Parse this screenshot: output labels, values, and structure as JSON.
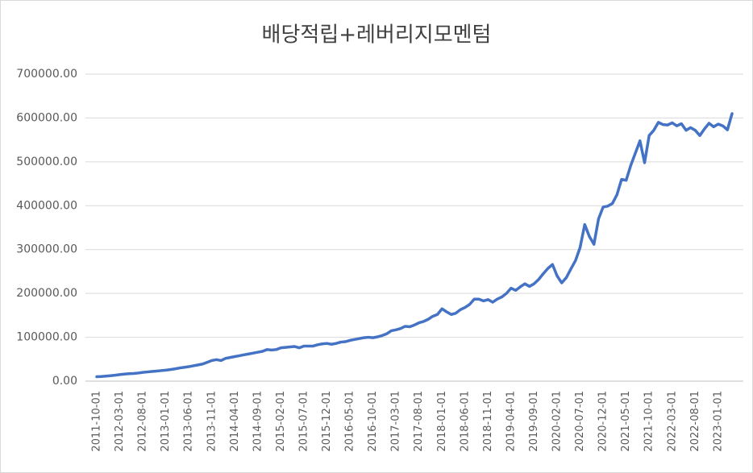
{
  "chart_data": {
    "type": "line",
    "title": "배당적립+레버리지모멘텀",
    "categories": [
      "2011-10-01",
      null,
      null,
      null,
      null,
      "2012-03-01",
      null,
      null,
      null,
      null,
      "2012-08-01",
      null,
      null,
      null,
      null,
      "2013-01-01",
      null,
      null,
      null,
      null,
      "2013-06-01",
      null,
      null,
      null,
      null,
      "2013-11-01",
      null,
      null,
      null,
      null,
      "2014-04-01",
      null,
      null,
      null,
      null,
      "2014-09-01",
      null,
      null,
      null,
      null,
      "2015-02-01",
      null,
      null,
      null,
      null,
      "2015-07-01",
      null,
      null,
      null,
      null,
      "2015-12-01",
      null,
      null,
      null,
      null,
      "2016-05-01",
      null,
      null,
      null,
      null,
      "2016-10-01",
      null,
      null,
      null,
      null,
      "2017-03-01",
      null,
      null,
      null,
      null,
      "2017-08-01",
      null,
      null,
      null,
      null,
      "2018-01-01",
      null,
      null,
      null,
      null,
      "2018-06-01",
      null,
      null,
      null,
      null,
      "2018-11-01",
      null,
      null,
      null,
      null,
      "2019-04-01",
      null,
      null,
      null,
      null,
      "2019-09-01",
      null,
      null,
      null,
      null,
      "2020-02-01",
      null,
      null,
      null,
      null,
      "2020-07-01",
      null,
      null,
      null,
      null,
      "2020-12-01",
      null,
      null,
      null,
      null,
      "2021-05-01",
      null,
      null,
      null,
      null,
      "2021-10-01",
      null,
      null,
      null,
      null,
      "2022-03-01",
      null,
      null,
      null,
      null,
      "2022-08-01",
      null,
      null,
      null,
      null,
      "2023-01-01",
      null,
      null,
      null
    ],
    "series": [
      {
        "name": "배당적립+레버리지모멘텀",
        "color": "#4472c4",
        "values": [
          10000,
          10500,
          11500,
          12500,
          13500,
          15000,
          16000,
          17000,
          17500,
          18500,
          20000,
          21000,
          22000,
          23000,
          24000,
          25000,
          26500,
          28000,
          30000,
          31500,
          33000,
          35000,
          37000,
          39000,
          43000,
          47000,
          49000,
          47000,
          52000,
          54000,
          56000,
          58000,
          60000,
          62000,
          64000,
          66000,
          68000,
          72000,
          71000,
          72000,
          76000,
          77000,
          78000,
          79000,
          76000,
          80000,
          80000,
          80000,
          83000,
          85000,
          86000,
          84000,
          86000,
          89000,
          90000,
          93000,
          95000,
          97000,
          99000,
          100000,
          99000,
          101000,
          104000,
          108000,
          115000,
          117000,
          120000,
          125000,
          124000,
          128000,
          133000,
          136000,
          141000,
          148000,
          152000,
          165000,
          158000,
          152000,
          155000,
          163000,
          168000,
          175000,
          187000,
          187000,
          183000,
          186000,
          180000,
          187000,
          192000,
          200000,
          212000,
          207000,
          215000,
          222000,
          216000,
          222000,
          232000,
          245000,
          257000,
          266000,
          240000,
          224000,
          236000,
          256000,
          275000,
          305000,
          357000,
          330000,
          312000,
          370000,
          397000,
          399000,
          405000,
          425000,
          460000,
          458000,
          492000,
          520000,
          548000,
          498000,
          560000,
          572000,
          590000,
          585000,
          584000,
          589000,
          582000,
          587000,
          572000,
          578000,
          572000,
          560000,
          575000,
          588000,
          580000,
          586000,
          582000,
          573000,
          610000
        ]
      }
    ],
    "ylim": [
      0,
      700000
    ],
    "yticks": [
      {
        "value": 0,
        "label": "0.00"
      },
      {
        "value": 100000,
        "label": "100000.00"
      },
      {
        "value": 200000,
        "label": "200000.00"
      },
      {
        "value": 300000,
        "label": "300000.00"
      },
      {
        "value": 400000,
        "label": "400000.00"
      },
      {
        "value": 500000,
        "label": "500000.00"
      },
      {
        "value": 600000,
        "label": "600000.00"
      },
      {
        "value": 700000,
        "label": "700000.00"
      }
    ],
    "grid": true
  }
}
